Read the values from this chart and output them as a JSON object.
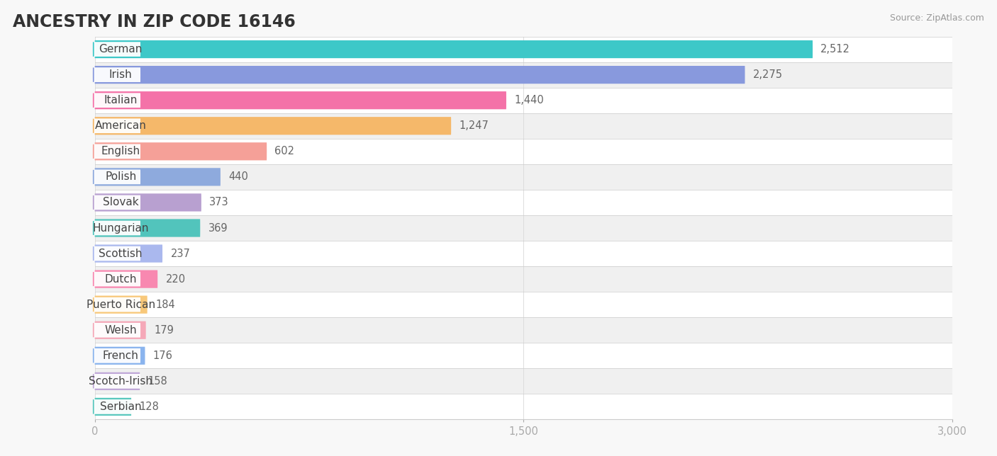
{
  "title": "ANCESTRY IN ZIP CODE 16146",
  "source": "Source: ZipAtlas.com",
  "categories": [
    "German",
    "Irish",
    "Italian",
    "American",
    "English",
    "Polish",
    "Slovak",
    "Hungarian",
    "Scottish",
    "Dutch",
    "Puerto Rican",
    "Welsh",
    "French",
    "Scotch-Irish",
    "Serbian"
  ],
  "values": [
    2512,
    2275,
    1440,
    1247,
    602,
    440,
    373,
    369,
    237,
    220,
    184,
    179,
    176,
    158,
    128
  ],
  "colors": [
    "#3dc8c8",
    "#8899dd",
    "#f472a8",
    "#f5b86a",
    "#f5a098",
    "#8eaadd",
    "#b8a0d0",
    "#52c4bc",
    "#aab8ee",
    "#f888b0",
    "#f8c87a",
    "#f5a8b8",
    "#8ab4ee",
    "#c0a8d8",
    "#5ac8be"
  ],
  "row_colors": [
    "#ffffff",
    "#f0f0f0"
  ],
  "xlim": [
    0,
    3000
  ],
  "xticks": [
    0,
    1500,
    3000
  ],
  "xtick_labels": [
    "0",
    "1,500",
    "3,000"
  ],
  "background_color": "#f8f8f8",
  "title_fontsize": 17,
  "bar_height": 0.7,
  "value_fontsize": 10.5,
  "label_fontsize": 11
}
